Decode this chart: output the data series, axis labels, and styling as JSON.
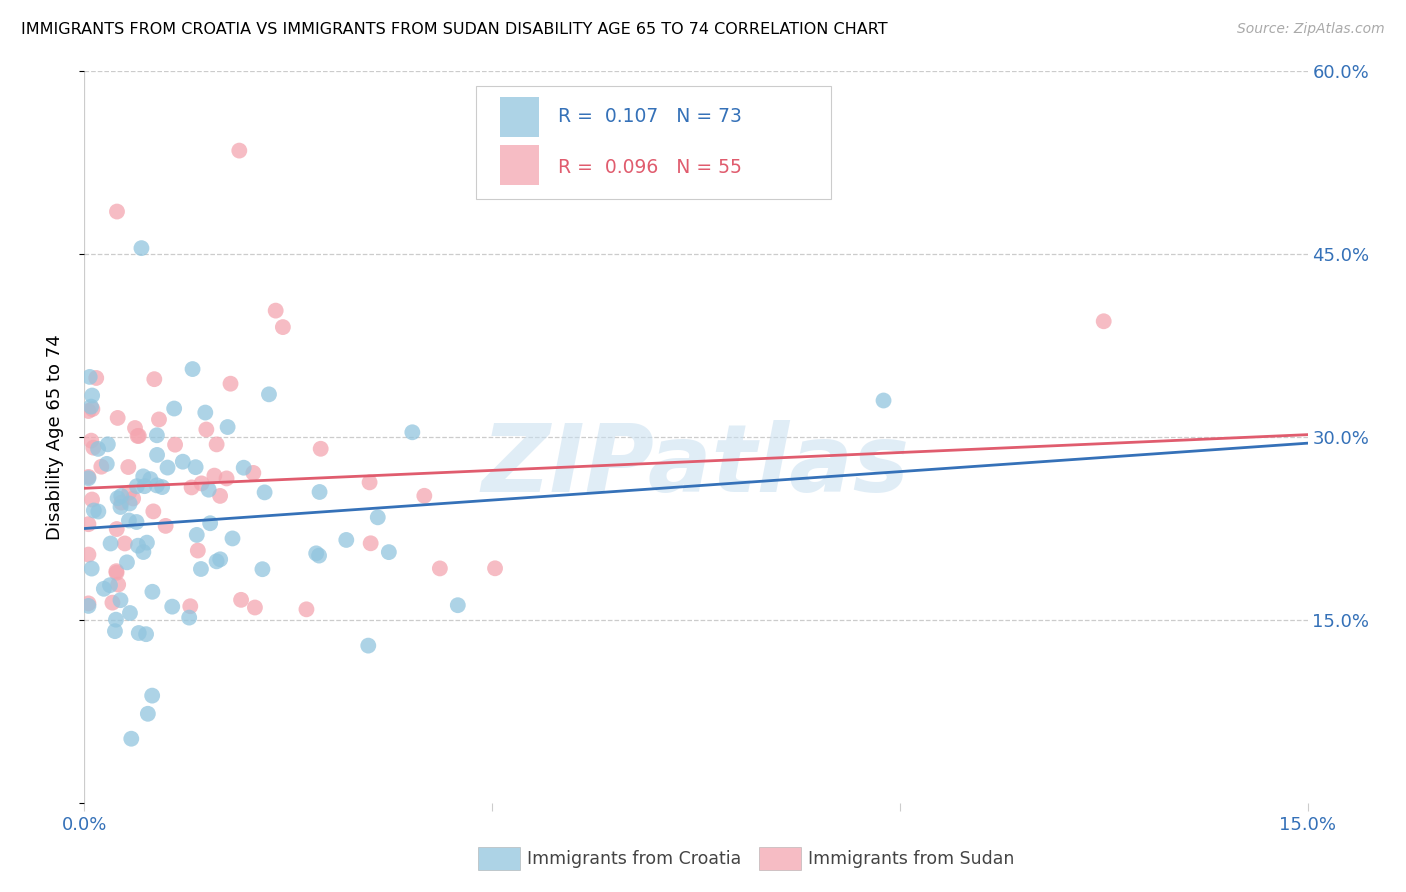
{
  "title": "IMMIGRANTS FROM CROATIA VS IMMIGRANTS FROM SUDAN DISABILITY AGE 65 TO 74 CORRELATION CHART",
  "source": "Source: ZipAtlas.com",
  "ylabel": "Disability Age 65 to 74",
  "xlim": [
    0.0,
    0.15
  ],
  "ylim": [
    0.0,
    0.6
  ],
  "ytick_positions": [
    0.0,
    0.15,
    0.3,
    0.45,
    0.6
  ],
  "xtick_positions": [
    0.0,
    0.05,
    0.1,
    0.15
  ],
  "xtick_labels": [
    "0.0%",
    "",
    "",
    "15.0%"
  ],
  "ytick_labels_right": [
    "",
    "15.0%",
    "30.0%",
    "45.0%",
    "60.0%"
  ],
  "croatia_color": "#92c5de",
  "sudan_color": "#f4a6b0",
  "croatia_line_color": "#3571b8",
  "sudan_line_color": "#e05c6e",
  "croatia_R": 0.107,
  "croatia_N": 73,
  "sudan_R": 0.096,
  "sudan_N": 55,
  "croatia_line_x0": 0.0,
  "croatia_line_y0": 0.225,
  "croatia_line_x1": 0.15,
  "croatia_line_y1": 0.295,
  "sudan_line_x0": 0.0,
  "sudan_line_y0": 0.258,
  "sudan_line_x1": 0.15,
  "sudan_line_y1": 0.302,
  "watermark": "ZIPatlas",
  "legend_label_croatia": "Immigrants from Croatia",
  "legend_label_sudan": "Immigrants from Sudan",
  "grid_color": "#cccccc",
  "tick_color": "#3571b8"
}
